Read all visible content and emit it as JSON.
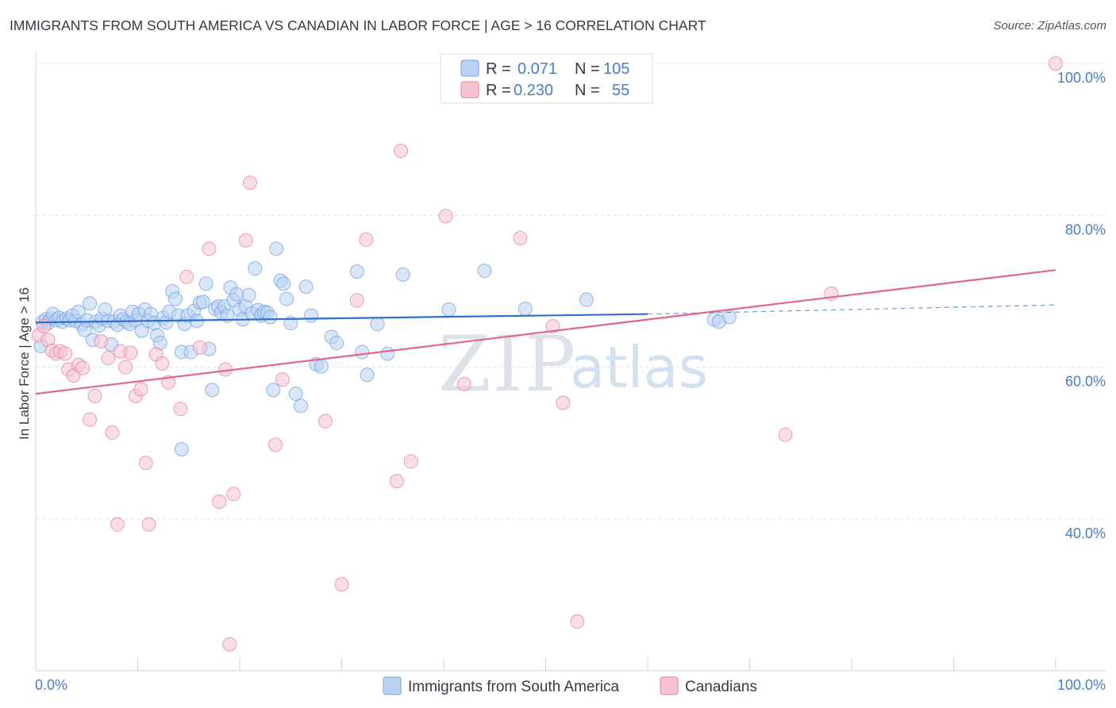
{
  "title": "IMMIGRANTS FROM SOUTH AMERICA VS CANADIAN IN LABOR FORCE | AGE > 16 CORRELATION CHART",
  "source": "Source: ZipAtlas.com",
  "watermark": {
    "zip": "ZIP",
    "atlas": "atlas"
  },
  "colors": {
    "blue": "#6fa0e0",
    "blue_fill": "#b9d2f3",
    "pink": "#e87ea0",
    "pink_fill": "#f6c3d3",
    "blue_line": "#2f6fd0",
    "pink_line": "#e0668f",
    "tick_text": "#4a7cc9"
  },
  "legend": {
    "rows": [
      {
        "r_label": "R = ",
        "r_value": "0.071",
        "n_label": "N = ",
        "n_value": "105"
      },
      {
        "r_label": "R = ",
        "r_value": "0.230",
        "n_label": "N = ",
        "n_value": "55"
      }
    ]
  },
  "chart_data": {
    "type": "scatter",
    "title": "IMMIGRANTS FROM SOUTH AMERICA VS CANADIAN IN LABOR FORCE | AGE > 16 CORRELATION CHART",
    "xlabel": "",
    "ylabel": "In Labor Force | Age > 16",
    "xlim": [
      0,
      100
    ],
    "ylim": [
      20,
      102
    ],
    "x_tick_labels": [
      "0.0%",
      "100.0%"
    ],
    "y_ticks": [
      40,
      60,
      80,
      100
    ],
    "y_tick_labels": [
      "40.0%",
      "60.0%",
      "80.0%",
      "100.0%"
    ],
    "grid": true,
    "legend_position": "top-center",
    "series": [
      {
        "name": "Immigrants from South America",
        "color": "#6fa0e0",
        "r": 0.071,
        "n": 105,
        "trend": {
          "x": [
            0,
            60
          ],
          "y": [
            65.9,
            67.0
          ],
          "dashed_to": [
            100,
            68.2
          ]
        },
        "points": [
          [
            0.5,
            62.8
          ],
          [
            0.7,
            66.0
          ],
          [
            1.0,
            66.3
          ],
          [
            1.2,
            65.8
          ],
          [
            1.5,
            66.4
          ],
          [
            1.7,
            67.0
          ],
          [
            2.0,
            66.2
          ],
          [
            2.3,
            66.5
          ],
          [
            2.6,
            66.0
          ],
          [
            3.0,
            66.4
          ],
          [
            3.3,
            66.2
          ],
          [
            3.6,
            66.8
          ],
          [
            3.9,
            66.1
          ],
          [
            4.2,
            67.3
          ],
          [
            4.5,
            65.6
          ],
          [
            4.8,
            64.9
          ],
          [
            5.0,
            66.2
          ],
          [
            5.3,
            68.4
          ],
          [
            5.6,
            63.6
          ],
          [
            5.9,
            66.0
          ],
          [
            6.2,
            65.5
          ],
          [
            6.5,
            66.4
          ],
          [
            6.8,
            67.6
          ],
          [
            7.1,
            66.1
          ],
          [
            7.4,
            63.0
          ],
          [
            7.7,
            66.0
          ],
          [
            8.0,
            65.6
          ],
          [
            8.3,
            66.8
          ],
          [
            8.6,
            66.3
          ],
          [
            8.9,
            66.0
          ],
          [
            9.2,
            65.7
          ],
          [
            9.5,
            67.3
          ],
          [
            9.8,
            66.2
          ],
          [
            10.1,
            67.0
          ],
          [
            10.4,
            64.8
          ],
          [
            10.7,
            67.6
          ],
          [
            11.0,
            66.1
          ],
          [
            11.3,
            67.0
          ],
          [
            11.6,
            65.8
          ],
          [
            11.9,
            64.2
          ],
          [
            12.2,
            63.2
          ],
          [
            12.5,
            66.5
          ],
          [
            12.8,
            65.9
          ],
          [
            13.1,
            67.3
          ],
          [
            13.4,
            70.0
          ],
          [
            13.7,
            69.0
          ],
          [
            14.0,
            66.8
          ],
          [
            14.3,
            62.0
          ],
          [
            14.6,
            65.7
          ],
          [
            14.9,
            66.8
          ],
          [
            15.2,
            62.0
          ],
          [
            15.5,
            67.4
          ],
          [
            15.8,
            66.1
          ],
          [
            16.1,
            68.5
          ],
          [
            16.4,
            68.6
          ],
          [
            16.7,
            71.0
          ],
          [
            17.0,
            62.4
          ],
          [
            17.3,
            57.0
          ],
          [
            17.6,
            67.7
          ],
          [
            17.9,
            68.0
          ],
          [
            18.2,
            67.2
          ],
          [
            18.5,
            68.0
          ],
          [
            18.8,
            66.8
          ],
          [
            19.1,
            70.5
          ],
          [
            19.4,
            68.8
          ],
          [
            19.7,
            69.6
          ],
          [
            20.0,
            67.6
          ],
          [
            20.3,
            66.3
          ],
          [
            20.6,
            68.0
          ],
          [
            20.9,
            69.5
          ],
          [
            21.2,
            67.1
          ],
          [
            21.5,
            73.0
          ],
          [
            21.8,
            67.5
          ],
          [
            22.1,
            66.8
          ],
          [
            22.4,
            67.3
          ],
          [
            22.7,
            67.2
          ],
          [
            23.0,
            66.6
          ],
          [
            23.3,
            57.0
          ],
          [
            23.6,
            75.6
          ],
          [
            24.0,
            71.4
          ],
          [
            24.3,
            71.0
          ],
          [
            24.6,
            69.0
          ],
          [
            25.0,
            65.8
          ],
          [
            25.5,
            56.5
          ],
          [
            26.0,
            54.9
          ],
          [
            26.5,
            70.6
          ],
          [
            27.0,
            66.8
          ],
          [
            27.5,
            60.4
          ],
          [
            28.0,
            60.1
          ],
          [
            29.0,
            64.0
          ],
          [
            29.5,
            63.2
          ],
          [
            31.5,
            72.6
          ],
          [
            32.0,
            62.0
          ],
          [
            32.5,
            59.0
          ],
          [
            33.5,
            65.7
          ],
          [
            34.5,
            61.8
          ],
          [
            36.0,
            72.2
          ],
          [
            40.5,
            67.6
          ],
          [
            44.0,
            72.7
          ],
          [
            48.0,
            67.7
          ],
          [
            54.0,
            68.9
          ],
          [
            66.5,
            66.3
          ],
          [
            67.0,
            66.0
          ],
          [
            68.0,
            66.6
          ],
          [
            14.3,
            49.2
          ]
        ]
      },
      {
        "name": "Canadians",
        "color": "#e87ea0",
        "r": 0.23,
        "n": 55,
        "trend": {
          "x": [
            0,
            100
          ],
          "y": [
            56.5,
            72.8
          ]
        },
        "points": [
          [
            0.3,
            64.2
          ],
          [
            0.8,
            65.4
          ],
          [
            1.2,
            63.6
          ],
          [
            1.6,
            62.2
          ],
          [
            2.0,
            61.8
          ],
          [
            2.4,
            62.1
          ],
          [
            2.9,
            61.8
          ],
          [
            3.2,
            59.7
          ],
          [
            3.7,
            58.9
          ],
          [
            4.2,
            60.3
          ],
          [
            4.6,
            59.9
          ],
          [
            5.3,
            53.1
          ],
          [
            5.8,
            56.2
          ],
          [
            6.4,
            63.4
          ],
          [
            7.1,
            61.2
          ],
          [
            7.5,
            51.4
          ],
          [
            8.0,
            39.3
          ],
          [
            8.3,
            62.1
          ],
          [
            8.8,
            60.0
          ],
          [
            9.3,
            61.9
          ],
          [
            9.8,
            56.2
          ],
          [
            10.3,
            57.1
          ],
          [
            10.8,
            47.4
          ],
          [
            11.1,
            39.3
          ],
          [
            11.8,
            61.7
          ],
          [
            12.4,
            60.5
          ],
          [
            13.0,
            58.0
          ],
          [
            14.2,
            54.5
          ],
          [
            14.8,
            71.9
          ],
          [
            16.1,
            62.6
          ],
          [
            17.0,
            75.6
          ],
          [
            18.0,
            42.3
          ],
          [
            18.6,
            59.7
          ],
          [
            19.0,
            23.5
          ],
          [
            19.4,
            43.3
          ],
          [
            20.6,
            76.7
          ],
          [
            21.0,
            84.3
          ],
          [
            23.5,
            49.8
          ],
          [
            24.2,
            58.4
          ],
          [
            28.4,
            52.9
          ],
          [
            30.0,
            31.4
          ],
          [
            31.5,
            68.8
          ],
          [
            32.4,
            76.8
          ],
          [
            35.4,
            45.0
          ],
          [
            35.8,
            88.5
          ],
          [
            36.8,
            47.6
          ],
          [
            40.2,
            79.9
          ],
          [
            42.0,
            57.8
          ],
          [
            47.5,
            77.0
          ],
          [
            50.7,
            65.4
          ],
          [
            51.7,
            55.3
          ],
          [
            53.1,
            26.5
          ],
          [
            73.5,
            51.1
          ],
          [
            78.0,
            69.7
          ],
          [
            100.0,
            100.0
          ]
        ]
      }
    ]
  }
}
